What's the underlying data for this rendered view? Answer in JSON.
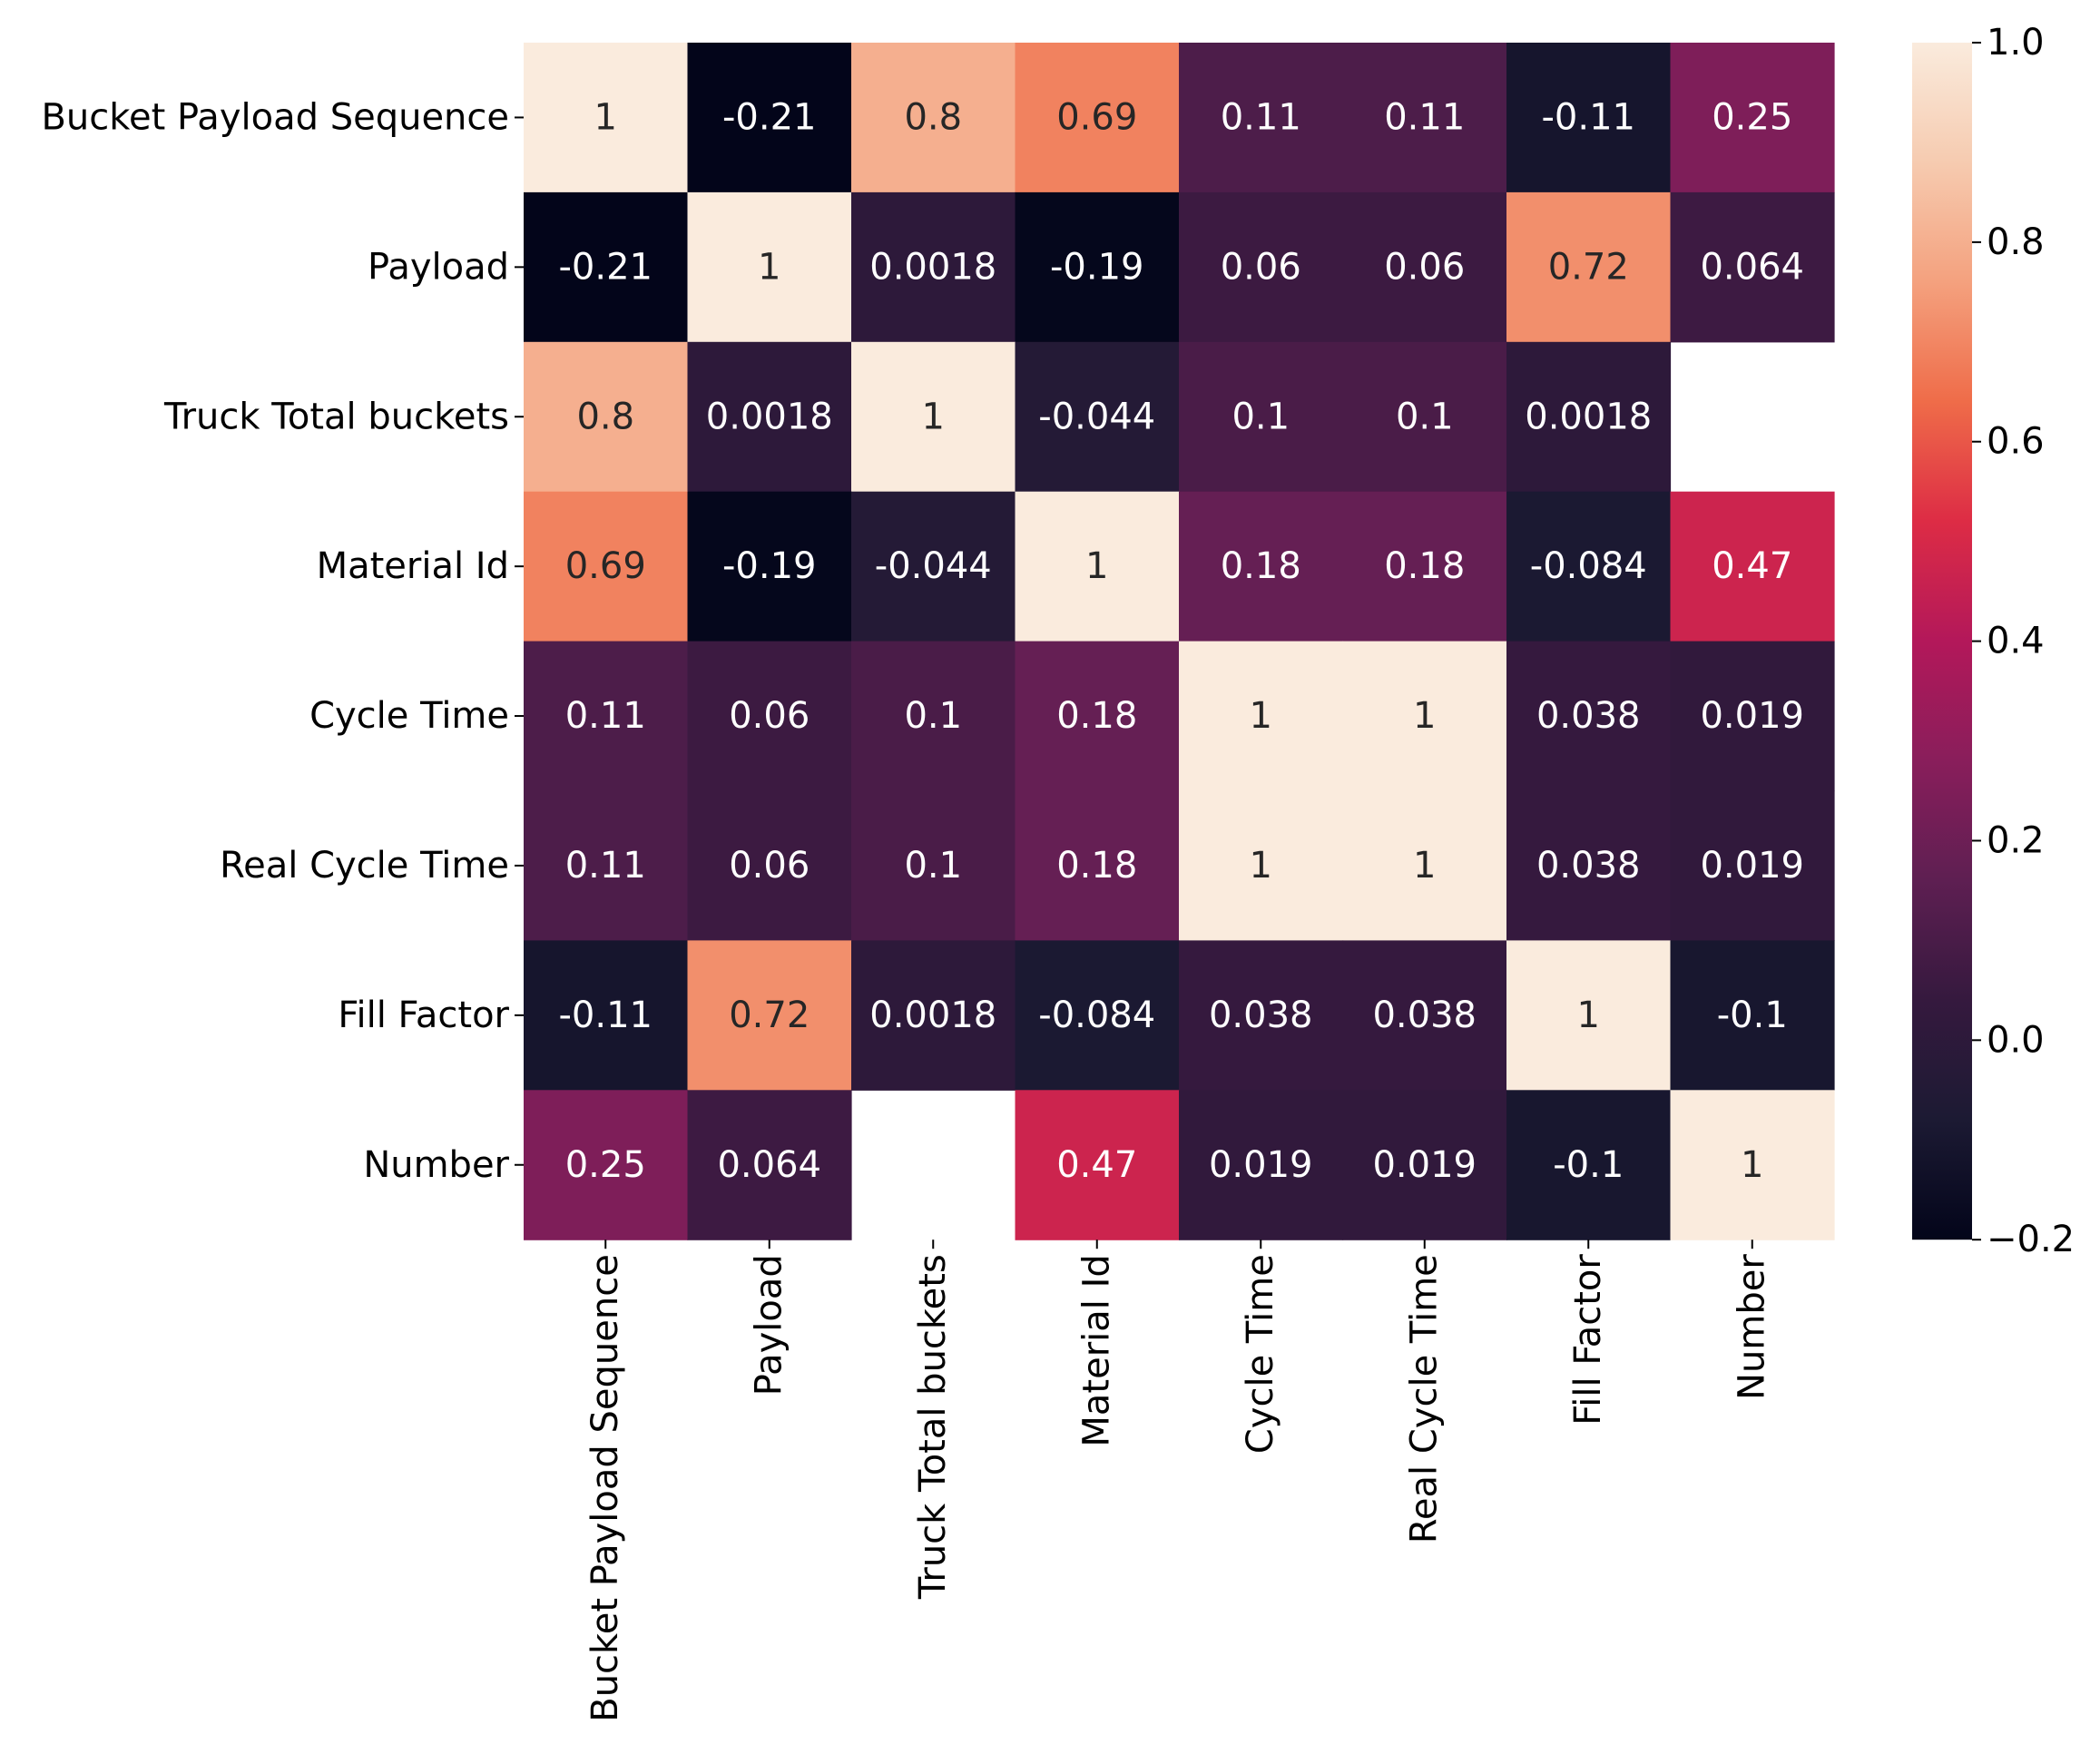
{
  "chart_data": {
    "type": "heatmap",
    "row_labels": [
      "Bucket Payload Sequence",
      "Payload",
      "Truck Total buckets",
      "Material Id",
      "Cycle Time",
      "Real Cycle Time",
      "Fill Factor",
      "Number"
    ],
    "col_labels": [
      "Bucket Payload Sequence",
      "Payload",
      "Truck Total buckets",
      "Material Id",
      "Cycle Time",
      "Real Cycle Time",
      "Fill Factor",
      "Number"
    ],
    "values": [
      [
        1,
        -0.21,
        0.8,
        0.69,
        0.11,
        0.11,
        -0.11,
        0.25
      ],
      [
        -0.21,
        1,
        0.0018,
        -0.19,
        0.06,
        0.06,
        0.72,
        0.064
      ],
      [
        0.8,
        0.0018,
        1,
        -0.044,
        0.1,
        0.1,
        0.0018,
        null
      ],
      [
        0.69,
        -0.19,
        -0.044,
        1,
        0.18,
        0.18,
        -0.084,
        0.47
      ],
      [
        0.11,
        0.06,
        0.1,
        0.18,
        1,
        1,
        0.038,
        0.019
      ],
      [
        0.11,
        0.06,
        0.1,
        0.18,
        1,
        1,
        0.038,
        0.019
      ],
      [
        -0.11,
        0.72,
        0.0018,
        -0.084,
        0.038,
        0.038,
        1,
        -0.1
      ],
      [
        0.25,
        0.064,
        null,
        0.47,
        0.019,
        0.019,
        -0.1,
        1
      ]
    ],
    "annotations": [
      [
        "1",
        "-0.21",
        "0.8",
        "0.69",
        "0.11",
        "0.11",
        "-0.11",
        "0.25"
      ],
      [
        "-0.21",
        "1",
        "0.0018",
        "-0.19",
        "0.06",
        "0.06",
        "0.72",
        "0.064"
      ],
      [
        "0.8",
        "0.0018",
        "1",
        "-0.044",
        "0.1",
        "0.1",
        "0.0018",
        ""
      ],
      [
        "0.69",
        "-0.19",
        "-0.044",
        "1",
        "0.18",
        "0.18",
        "-0.084",
        "0.47"
      ],
      [
        "0.11",
        "0.06",
        "0.1",
        "0.18",
        "1",
        "1",
        "0.038",
        "0.019"
      ],
      [
        "0.11",
        "0.06",
        "0.1",
        "0.18",
        "1",
        "1",
        "0.038",
        "0.019"
      ],
      [
        "-0.11",
        "0.72",
        "0.0018",
        "-0.084",
        "0.038",
        "0.038",
        "1",
        "-0.1"
      ],
      [
        "0.25",
        "0.064",
        "",
        "0.47",
        "0.019",
        "0.019",
        "-0.1",
        "1"
      ]
    ],
    "colorbar": {
      "min": -0.2,
      "max": 1.0,
      "ticks": [
        1.0,
        0.8,
        0.6,
        0.4,
        0.2,
        0.0,
        -0.2
      ],
      "tick_labels": [
        "1.0",
        "0.8",
        "0.6",
        "0.4",
        "0.2",
        "0.0",
        "−0.2"
      ]
    },
    "colormap": "rocket",
    "title": "",
    "xlabel": "",
    "ylabel": ""
  }
}
